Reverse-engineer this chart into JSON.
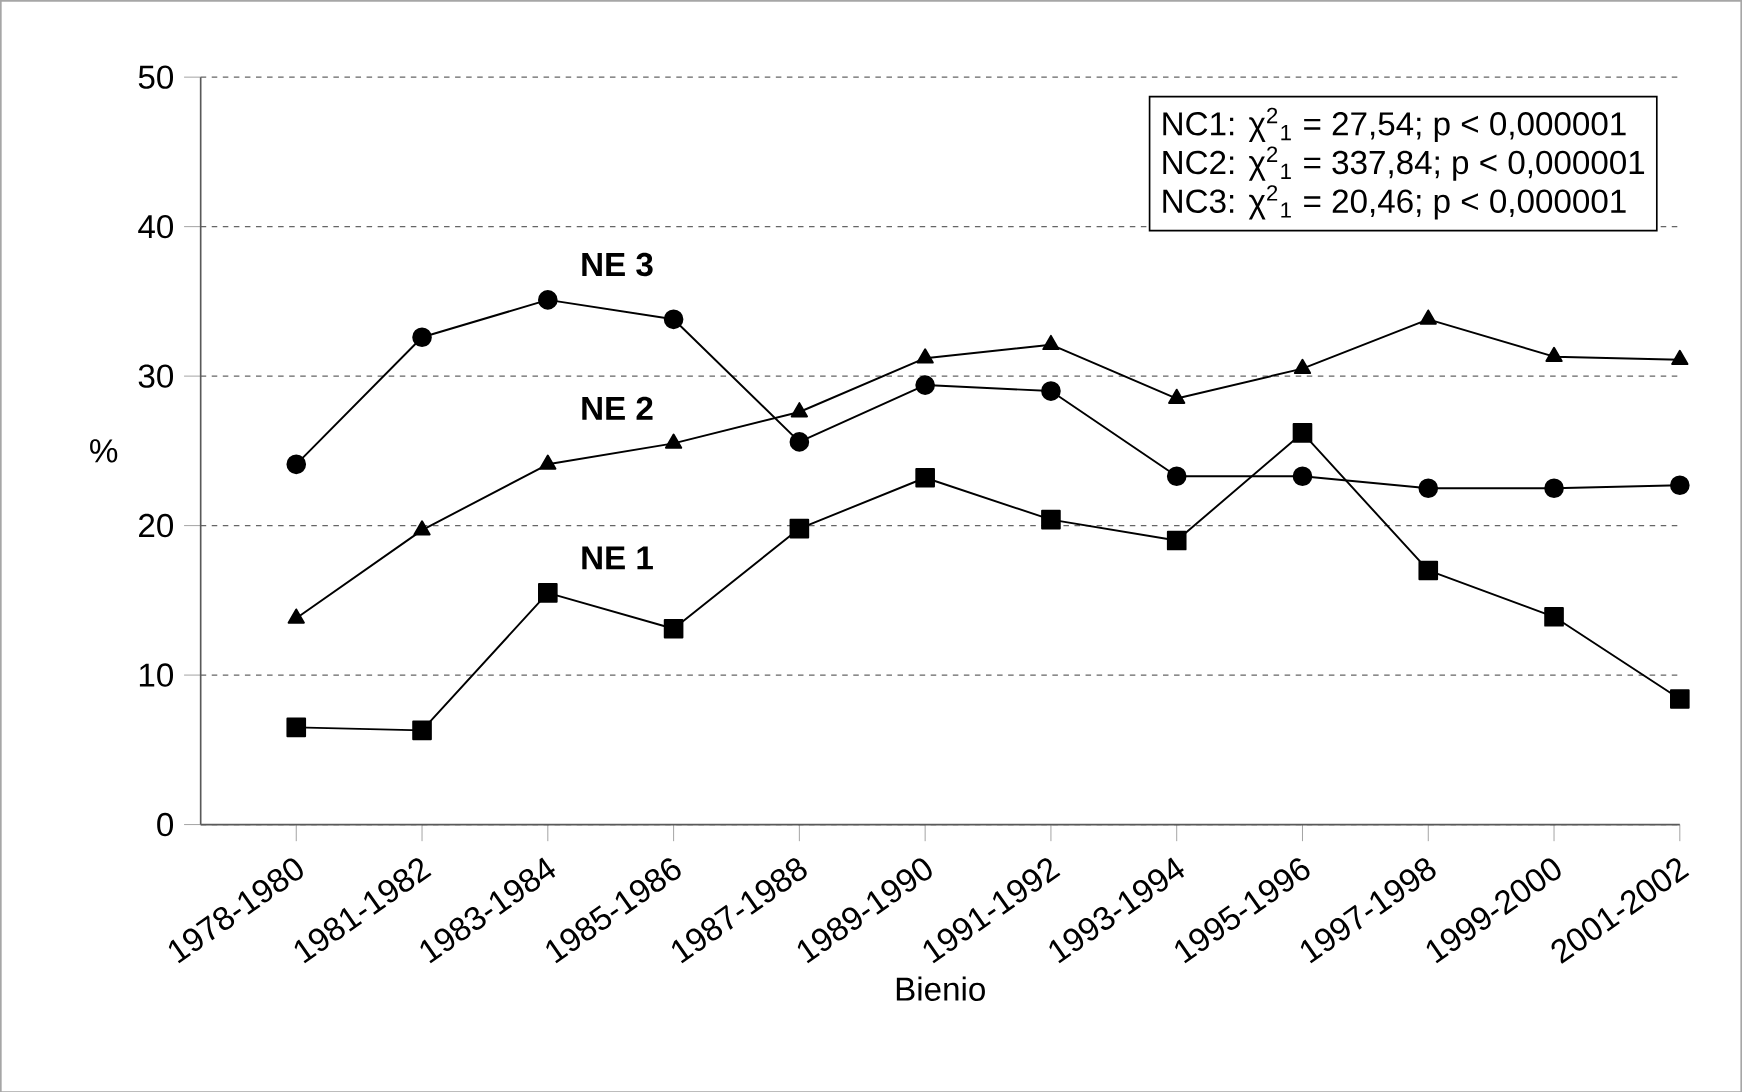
{
  "chart_data": {
    "type": "line",
    "xlabel": "Bienio",
    "ylabel": "%",
    "categories": [
      "1978-1980",
      "1981-1982",
      "1983-1984",
      "1985-1986",
      "1987-1988",
      "1989-1990",
      "1991-1992",
      "1993-1994",
      "1995-1996",
      "1997-1998",
      "1999-2000",
      "2001-2002"
    ],
    "series": [
      {
        "name": "NE 1",
        "color": "#000000",
        "marker": "square",
        "values": [
          6.5,
          6.3,
          15.5,
          13.1,
          19.8,
          23.2,
          20.4,
          19.0,
          26.2,
          17.0,
          13.9,
          8.4
        ]
      },
      {
        "name": "NE 2",
        "color": "#000000",
        "marker": "triangle",
        "values": [
          13.8,
          19.7,
          24.1,
          25.5,
          27.6,
          31.2,
          32.1,
          28.5,
          30.5,
          33.8,
          31.3,
          31.1
        ]
      },
      {
        "name": "NE 3",
        "color": "#000000",
        "marker": "circle",
        "values": [
          24.1,
          32.6,
          35.1,
          33.8,
          25.6,
          29.4,
          29.0,
          23.3,
          23.3,
          22.5,
          22.5,
          22.7
        ]
      }
    ],
    "ylim": [
      0,
      50
    ],
    "yticks": [
      0,
      10,
      20,
      30,
      40,
      50
    ],
    "grid": "y",
    "legend": false,
    "line_style": "solid",
    "annotations": [
      "NC1:  χ$^{2}$$_{1}$ =   27,54; p < 0,000001",
      "NC2:  χ$^{2}$$_{1}$ = 337,84; p < 0,000001",
      "NC3:  χ$^{2}$$_{1}$ =   20,46; p < 0,000001"
    ]
  }
}
